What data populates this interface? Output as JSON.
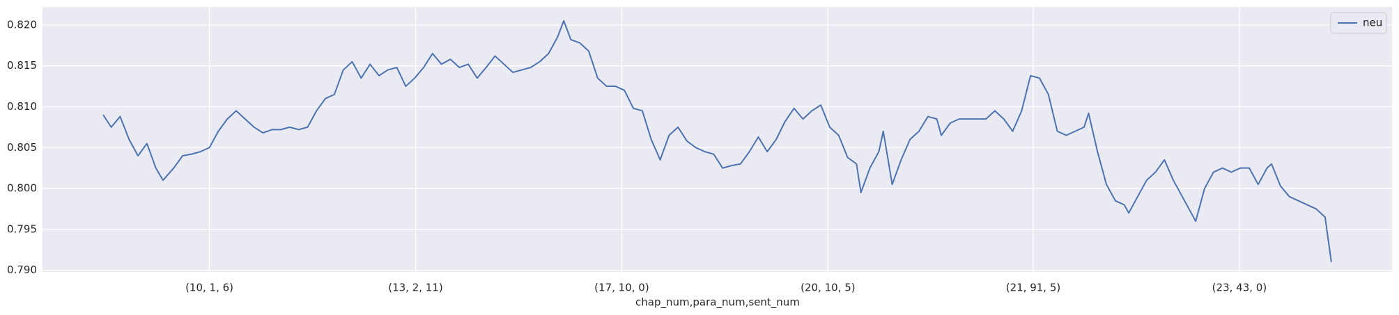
{
  "chart_data": {
    "type": "line",
    "x_label": "chap_num,para_num,sent_num",
    "x": [
      0,
      9,
      19,
      29,
      39,
      49,
      59,
      67,
      79,
      89,
      99,
      109,
      119,
      129,
      139,
      149,
      159,
      169,
      179,
      189,
      199,
      209,
      219,
      229,
      239,
      249,
      259,
      269,
      279,
      289,
      299,
      309,
      319,
      329,
      339,
      349,
      359,
      369,
      379,
      389,
      399,
      409,
      419,
      429,
      439,
      449,
      459,
      469,
      479,
      489,
      499,
      509,
      516,
      524,
      534,
      544,
      554,
      564,
      574,
      584,
      594,
      604,
      614,
      624,
      634,
      644,
      654,
      664,
      674,
      684,
      694,
      704,
      714,
      724,
      734,
      744,
      754,
      764,
      774,
      784,
      794,
      804,
      814,
      824,
      834,
      844,
      849,
      859,
      869,
      874,
      884,
      894,
      904,
      914,
      924,
      934,
      939,
      949,
      959,
      969,
      979,
      989,
      999,
      1009,
      1019,
      1029,
      1039,
      1049,
      1059,
      1069,
      1079,
      1089,
      1099,
      1104,
      1114,
      1124,
      1134,
      1144,
      1149,
      1159,
      1169,
      1179,
      1189,
      1199,
      1209,
      1219,
      1224,
      1234,
      1244,
      1254,
      1264,
      1274,
      1284,
      1294,
      1304,
      1309,
      1319,
      1329,
      1339,
      1349,
      1359,
      1369,
      1376
    ],
    "series": [
      {
        "name": "neu",
        "color": "#4c72b0",
        "values": [
          0.809,
          0.8075,
          0.8088,
          0.806,
          0.804,
          0.8055,
          0.8025,
          0.801,
          0.8025,
          0.804,
          0.8042,
          0.8045,
          0.805,
          0.807,
          0.8085,
          0.8095,
          0.8085,
          0.8075,
          0.8068,
          0.8072,
          0.8072,
          0.8075,
          0.8072,
          0.8075,
          0.8095,
          0.811,
          0.8115,
          0.8145,
          0.8155,
          0.8135,
          0.8152,
          0.8138,
          0.8145,
          0.8148,
          0.8125,
          0.8135,
          0.8148,
          0.8165,
          0.8152,
          0.8158,
          0.8148,
          0.8152,
          0.8135,
          0.8148,
          0.8162,
          0.8152,
          0.8142,
          0.8145,
          0.8148,
          0.8155,
          0.8165,
          0.8185,
          0.8205,
          0.8182,
          0.8178,
          0.8168,
          0.8135,
          0.8125,
          0.8125,
          0.812,
          0.8098,
          0.8095,
          0.806,
          0.8035,
          0.8065,
          0.8075,
          0.8058,
          0.805,
          0.8045,
          0.8042,
          0.8025,
          0.8028,
          0.803,
          0.8045,
          0.8063,
          0.8045,
          0.806,
          0.8082,
          0.8098,
          0.8085,
          0.8095,
          0.8102,
          0.8075,
          0.8065,
          0.8038,
          0.803,
          0.7995,
          0.8025,
          0.8045,
          0.807,
          0.8005,
          0.8035,
          0.806,
          0.807,
          0.8088,
          0.8085,
          0.8065,
          0.808,
          0.8085,
          0.8085,
          0.8085,
          0.8085,
          0.8095,
          0.8085,
          0.807,
          0.8095,
          0.8138,
          0.8135,
          0.8115,
          0.807,
          0.8065,
          0.807,
          0.8075,
          0.8092,
          0.8045,
          0.8005,
          0.7985,
          0.798,
          0.797,
          0.799,
          0.801,
          0.802,
          0.8035,
          0.801,
          0.799,
          0.797,
          0.796,
          0.8,
          0.802,
          0.8025,
          0.802,
          0.8025,
          0.8025,
          0.8005,
          0.8025,
          0.803,
          0.8003,
          0.799,
          0.7985,
          0.798,
          0.7975,
          0.7965,
          0.791
        ]
      }
    ],
    "xlim": [
      -68,
      1444
    ],
    "xticks": [
      {
        "value": 119,
        "label": "(10, 1, 6)"
      },
      {
        "value": 350,
        "label": "(13, 2, 11)"
      },
      {
        "value": 581,
        "label": "(17, 10, 0)"
      },
      {
        "value": 812,
        "label": "(20, 10, 5)"
      },
      {
        "value": 1042,
        "label": "(21, 91, 5)"
      },
      {
        "value": 1273,
        "label": "(23, 43, 0)"
      }
    ],
    "ylim": [
      0.7898,
      0.8222
    ],
    "yticks": [
      {
        "value": 0.79,
        "label": "0.790"
      },
      {
        "value": 0.795,
        "label": "0.795"
      },
      {
        "value": 0.8,
        "label": "0.800"
      },
      {
        "value": 0.805,
        "label": "0.805"
      },
      {
        "value": 0.81,
        "label": "0.810"
      },
      {
        "value": 0.815,
        "label": "0.815"
      },
      {
        "value": 0.82,
        "label": "0.820"
      }
    ],
    "grid": true,
    "legend": "upper right"
  }
}
